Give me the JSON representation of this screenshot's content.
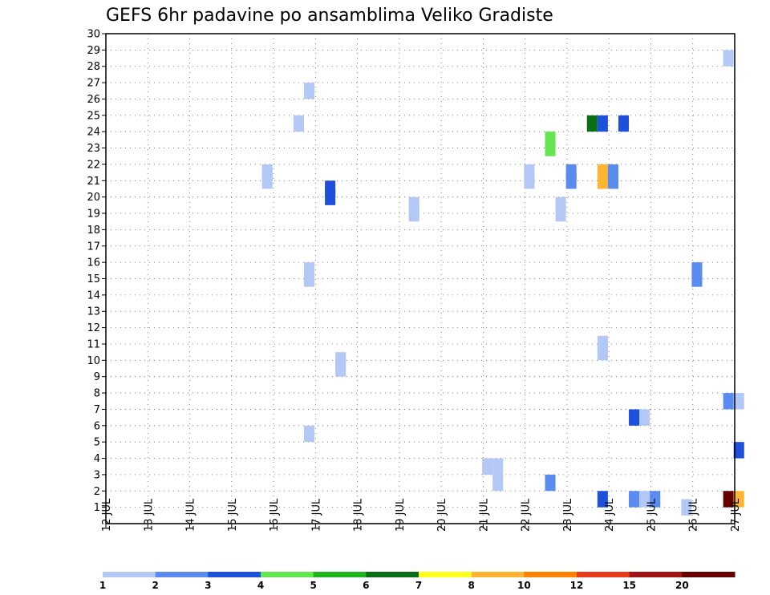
{
  "chart_data": {
    "type": "heatmap",
    "title": "GEFS 6hr padavine po ansamblima Veliko Gradiste",
    "xlabel": "",
    "ylabel": "",
    "x_tick_labels": [
      "12 JUL",
      "13 JUL",
      "14 JUL",
      "15 JUL",
      "16 JUL",
      "17 JUL",
      "18 JUL",
      "19 JUL",
      "20 JUL",
      "21 JUL",
      "22 JUL",
      "23 JUL",
      "24 JUL",
      "25 JUL",
      "26 JUL",
      "27 JUL"
    ],
    "y_tick_labels": [
      "1",
      "2",
      "3",
      "4",
      "5",
      "6",
      "7",
      "8",
      "9",
      "10",
      "11",
      "12",
      "13",
      "14",
      "15",
      "16",
      "17",
      "18",
      "19",
      "20",
      "21",
      "22",
      "23",
      "24",
      "25",
      "26",
      "27",
      "28",
      "29",
      "30"
    ],
    "xlim": [
      12,
      27
    ],
    "ylim": [
      0,
      30
    ],
    "grid": true,
    "colorbar": {
      "labels": [
        "1",
        "2",
        "3",
        "4",
        "5",
        "6",
        "7",
        "8",
        "10",
        "12",
        "15",
        "20"
      ],
      "colors": [
        "#b4c8f5",
        "#5a8cf0",
        "#1e50dc",
        "#64e650",
        "#1eb41e",
        "#0a6e14",
        "#ffff1e",
        "#ffb432",
        "#ff8200",
        "#e63c1e",
        "#a01414",
        "#640000"
      ]
    },
    "cells": [
      {
        "day": 26.85,
        "member": 28.5,
        "color": "#b4c8f5"
      },
      {
        "day": 16.85,
        "member": 26.5,
        "color": "#b4c8f5"
      },
      {
        "day": 16.6,
        "member": 24.5,
        "color": "#b4c8f5"
      },
      {
        "day": 23.6,
        "member": 24.5,
        "color": "#0a6e14"
      },
      {
        "day": 23.85,
        "member": 24.5,
        "color": "#1e50dc"
      },
      {
        "day": 24.35,
        "member": 24.5,
        "color": "#1e50dc"
      },
      {
        "day": 22.6,
        "member": 23.5,
        "color": "#64e650"
      },
      {
        "day": 22.6,
        "member": 23.0,
        "color": "#64e650"
      },
      {
        "day": 15.85,
        "member": 21.5,
        "color": "#b4c8f5"
      },
      {
        "day": 15.85,
        "member": 21.0,
        "color": "#b4c8f5"
      },
      {
        "day": 22.1,
        "member": 21.5,
        "color": "#b4c8f5"
      },
      {
        "day": 22.1,
        "member": 21.0,
        "color": "#b4c8f5"
      },
      {
        "day": 23.1,
        "member": 21.5,
        "color": "#5a8cf0"
      },
      {
        "day": 23.1,
        "member": 21.0,
        "color": "#5a8cf0"
      },
      {
        "day": 23.85,
        "member": 21.5,
        "color": "#ffb432"
      },
      {
        "day": 23.85,
        "member": 21.0,
        "color": "#ffb432"
      },
      {
        "day": 24.1,
        "member": 21.5,
        "color": "#5a8cf0"
      },
      {
        "day": 24.1,
        "member": 21.0,
        "color": "#5a8cf0"
      },
      {
        "day": 17.35,
        "member": 20.5,
        "color": "#1e50dc"
      },
      {
        "day": 17.35,
        "member": 20.0,
        "color": "#1e50dc"
      },
      {
        "day": 19.35,
        "member": 19.5,
        "color": "#b4c8f5"
      },
      {
        "day": 19.35,
        "member": 19.0,
        "color": "#b4c8f5"
      },
      {
        "day": 22.85,
        "member": 19.5,
        "color": "#b4c8f5"
      },
      {
        "day": 22.85,
        "member": 19.0,
        "color": "#b4c8f5"
      },
      {
        "day": 16.85,
        "member": 15.5,
        "color": "#b4c8f5"
      },
      {
        "day": 16.85,
        "member": 15.0,
        "color": "#b4c8f5"
      },
      {
        "day": 26.1,
        "member": 15.5,
        "color": "#5a8cf0"
      },
      {
        "day": 26.1,
        "member": 15.0,
        "color": "#5a8cf0"
      },
      {
        "day": 23.85,
        "member": 11.0,
        "color": "#b4c8f5"
      },
      {
        "day": 23.85,
        "member": 10.5,
        "color": "#b4c8f5"
      },
      {
        "day": 17.6,
        "member": 10.0,
        "color": "#b4c8f5"
      },
      {
        "day": 17.6,
        "member": 9.5,
        "color": "#b4c8f5"
      },
      {
        "day": 26.85,
        "member": 7.5,
        "color": "#5a8cf0"
      },
      {
        "day": 27.1,
        "member": 7.5,
        "color": "#b4c8f5"
      },
      {
        "day": 24.6,
        "member": 6.5,
        "color": "#1e50dc"
      },
      {
        "day": 24.85,
        "member": 6.5,
        "color": "#b4c8f5"
      },
      {
        "day": 16.85,
        "member": 5.5,
        "color": "#b4c8f5"
      },
      {
        "day": 27.1,
        "member": 4.5,
        "color": "#1e50dc"
      },
      {
        "day": 21.1,
        "member": 3.5,
        "color": "#b4c8f5"
      },
      {
        "day": 21.35,
        "member": 3.5,
        "color": "#b4c8f5"
      },
      {
        "day": 21.35,
        "member": 2.5,
        "color": "#b4c8f5"
      },
      {
        "day": 22.6,
        "member": 2.5,
        "color": "#5a8cf0"
      },
      {
        "day": 23.85,
        "member": 1.5,
        "color": "#1e50dc"
      },
      {
        "day": 24.6,
        "member": 1.5,
        "color": "#5a8cf0"
      },
      {
        "day": 24.85,
        "member": 1.5,
        "color": "#b4c8f5"
      },
      {
        "day": 25.1,
        "member": 1.5,
        "color": "#5a8cf0"
      },
      {
        "day": 25.85,
        "member": 1.0,
        "color": "#b4c8f5"
      },
      {
        "day": 26.85,
        "member": 1.5,
        "color": "#640000"
      },
      {
        "day": 27.1,
        "member": 1.5,
        "color": "#ffb432"
      }
    ]
  }
}
